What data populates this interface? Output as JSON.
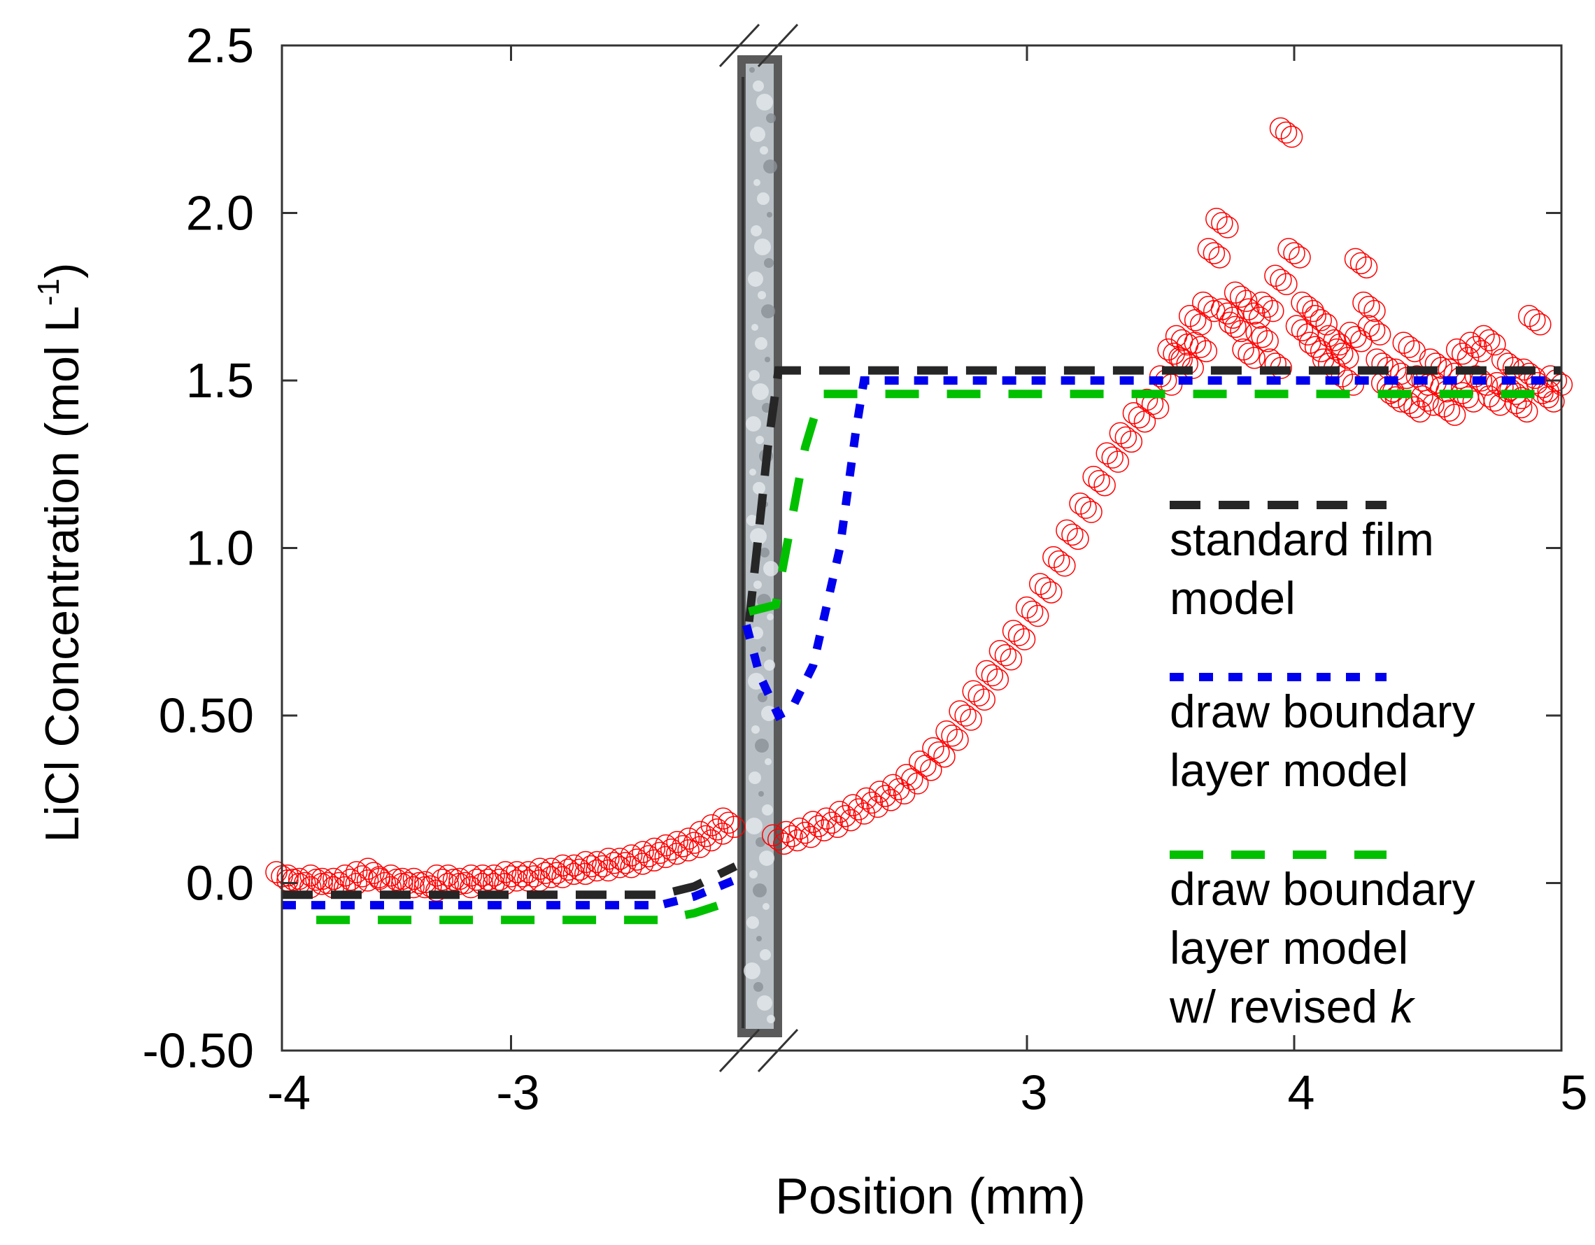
{
  "chart_data": {
    "type": "scatter",
    "title": "",
    "xlabel": "Position (mm)",
    "ylabel": {
      "text": "LiCl Concentration (mol L",
      "superscript": "-1",
      "suffix": ")"
    },
    "ylim": [
      -0.5,
      2.5
    ],
    "x_axis_broken": true,
    "x_segments": [
      {
        "range": [
          -4,
          -2
        ]
      },
      {
        "range": [
          2,
          5
        ]
      }
    ],
    "x_ticks": [
      {
        "value": -4,
        "segment": 0,
        "label": "-4"
      },
      {
        "value": -3,
        "segment": 0,
        "label": "-3"
      },
      {
        "value": 3,
        "segment": 1,
        "label": "3"
      },
      {
        "value": 4,
        "segment": 1,
        "label": "4"
      },
      {
        "value": 5,
        "segment": 1,
        "label": "5"
      }
    ],
    "y_ticks": [
      {
        "value": 2.5,
        "label": "2.5"
      },
      {
        "value": 2.0,
        "label": "2.0"
      },
      {
        "value": 1.5,
        "label": "1.5"
      },
      {
        "value": 1.0,
        "label": "1.0"
      },
      {
        "value": 0.5,
        "label": "0.50"
      },
      {
        "value": 0.0,
        "label": "0.0"
      },
      {
        "value": -0.5,
        "label": "-0.50"
      }
    ],
    "grid": false,
    "legend_placement": "right",
    "membrane_color": "#b8c0c6",
    "scatter": {
      "color": "#ff0000",
      "marker": "open-circle",
      "left": {
        "x": [
          -4.0,
          -3.95,
          -3.9,
          -3.85,
          -3.8,
          -3.75,
          -3.7,
          -3.65,
          -3.6,
          -3.55,
          -3.5,
          -3.45,
          -3.4,
          -3.35,
          -3.3,
          -3.25,
          -3.2,
          -3.15,
          -3.1,
          -3.05,
          -3.0,
          -2.95,
          -2.9,
          -2.85,
          -2.8,
          -2.75,
          -2.7,
          -2.65,
          -2.6,
          -2.55,
          -2.5,
          -2.45,
          -2.4,
          -2.35,
          -2.3,
          -2.25,
          -2.2,
          -2.15,
          -2.1,
          -2.05
        ],
        "y": [
          0.02,
          0.01,
          0.0,
          0.01,
          0.0,
          0.0,
          0.01,
          0.02,
          0.03,
          0.0,
          0.01,
          0.0,
          0.0,
          -0.01,
          0.01,
          0.01,
          0.0,
          0.01,
          0.01,
          0.01,
          0.02,
          0.02,
          0.02,
          0.03,
          0.03,
          0.04,
          0.04,
          0.05,
          0.05,
          0.06,
          0.06,
          0.07,
          0.08,
          0.09,
          0.1,
          0.11,
          0.12,
          0.14,
          0.16,
          0.18
        ]
      },
      "right": {
        "x": [
          2.07,
          2.12,
          2.17,
          2.22,
          2.27,
          2.32,
          2.37,
          2.42,
          2.47,
          2.52,
          2.57,
          2.62,
          2.67,
          2.72,
          2.77,
          2.82,
          2.87,
          2.92,
          2.97,
          3.02,
          3.07,
          3.12,
          3.17,
          3.22,
          3.27,
          3.32,
          3.37,
          3.42,
          3.47,
          3.52,
          3.55,
          3.58,
          3.6,
          3.63,
          3.65,
          3.68,
          3.7,
          3.73,
          3.75,
          3.78,
          3.8,
          3.83,
          3.85,
          3.88,
          3.9,
          3.93,
          3.95,
          3.97,
          4.0,
          4.03,
          4.05,
          4.08,
          4.1,
          4.13,
          4.15,
          4.18,
          4.2,
          4.23,
          4.25,
          4.28,
          4.3,
          4.33,
          4.35,
          4.38,
          4.4,
          4.43,
          4.45,
          4.48,
          4.5,
          4.53,
          4.55,
          4.58,
          4.6,
          4.63,
          4.65,
          4.68,
          4.7,
          4.73,
          4.75,
          4.78,
          4.8,
          4.83,
          4.85,
          4.88,
          4.9,
          4.93,
          4.95,
          4.98
        ],
        "y": [
          0.13,
          0.14,
          0.15,
          0.17,
          0.18,
          0.2,
          0.22,
          0.24,
          0.26,
          0.28,
          0.31,
          0.35,
          0.39,
          0.44,
          0.5,
          0.56,
          0.62,
          0.68,
          0.74,
          0.81,
          0.88,
          0.96,
          1.04,
          1.12,
          1.2,
          1.27,
          1.33,
          1.39,
          1.43,
          1.5,
          1.58,
          1.62,
          1.55,
          1.68,
          1.6,
          1.72,
          1.88,
          1.97,
          1.7,
          1.66,
          1.75,
          1.58,
          1.7,
          1.63,
          1.72,
          1.55,
          1.8,
          2.24,
          1.88,
          1.65,
          1.72,
          1.6,
          1.68,
          1.55,
          1.62,
          1.58,
          1.5,
          1.63,
          1.85,
          1.72,
          1.65,
          1.55,
          1.48,
          1.45,
          1.52,
          1.6,
          1.42,
          1.5,
          1.44,
          1.55,
          1.48,
          1.41,
          1.52,
          1.58,
          1.45,
          1.6,
          1.5,
          1.62,
          1.44,
          1.48,
          1.55,
          1.46,
          1.42,
          1.52,
          1.68,
          1.48,
          1.45,
          1.5
        ]
      }
    },
    "series": [
      {
        "name": "standard film model",
        "color": "#262626",
        "style": "dashed",
        "left": {
          "x": [
            -4.0,
            -2.35,
            -2.2,
            -2.02
          ],
          "y": [
            -0.035,
            -0.035,
            -0.01,
            0.05
          ]
        },
        "right": {
          "x": [
            1.96,
            1.99,
            2.03,
            2.07,
            5.0
          ],
          "y": [
            0.78,
            1.0,
            1.3,
            1.53,
            1.53
          ]
        }
      },
      {
        "name": "draw boundary layer model",
        "color": "#0000ee",
        "style": "dotted",
        "left": {
          "x": [
            -4.0,
            -2.35,
            -2.2,
            -2.02
          ],
          "y": [
            -0.066,
            -0.066,
            -0.04,
            0.01
          ]
        },
        "right": {
          "x": [
            1.95,
            2.0,
            2.07,
            2.12,
            2.2,
            2.3,
            2.36,
            2.39,
            5.0
          ],
          "y": [
            0.77,
            0.62,
            0.5,
            0.52,
            0.65,
            1.0,
            1.35,
            1.5,
            1.5
          ]
        }
      },
      {
        "name": "draw boundary layer model w/ revised k",
        "color": "#00c000",
        "style": "dashed-long",
        "left": {
          "x": [
            -3.85,
            -2.35,
            -2.2,
            -2.02
          ],
          "y": [
            -0.11,
            -0.11,
            -0.09,
            -0.05
          ]
        },
        "right": {
          "x": [
            1.96,
            2.06,
            2.1,
            2.17,
            2.23,
            5.0
          ],
          "y": [
            0.81,
            0.83,
            1.0,
            1.3,
            1.46,
            1.46
          ]
        }
      }
    ],
    "legend": [
      {
        "lines": [
          "standard film",
          "model"
        ],
        "italic_suffix": ""
      },
      {
        "lines": [
          "draw boundary",
          "layer model"
        ],
        "italic_suffix": ""
      },
      {
        "lines": [
          "draw boundary",
          "layer model",
          "w/ revised "
        ],
        "italic_suffix": "k"
      }
    ]
  }
}
